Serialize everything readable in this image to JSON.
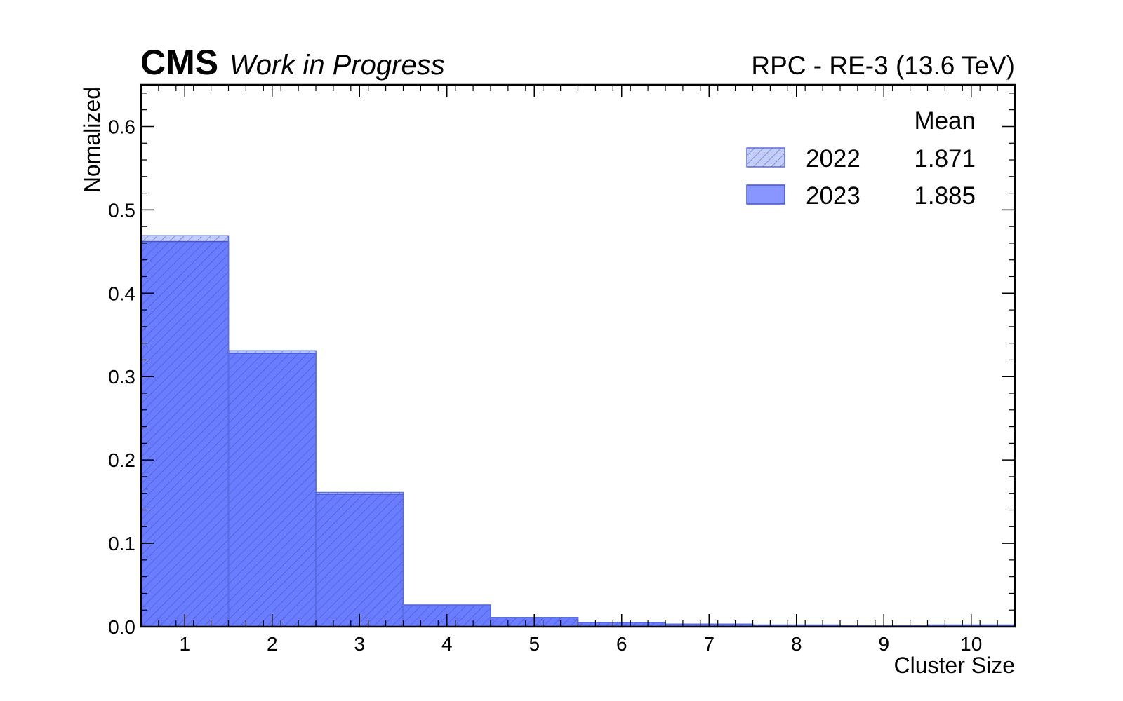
{
  "header": {
    "experiment": "CMS",
    "status": "Work in Progress",
    "right_label": "RPC - RE-3 (13.6 TeV)"
  },
  "chart_data": {
    "type": "bar",
    "histogram": true,
    "xlabel": "Cluster Size",
    "ylabel": "Nomalized",
    "xlim": [
      0.5,
      10.5
    ],
    "ylim": [
      0,
      0.65
    ],
    "x_ticks": [
      1,
      2,
      3,
      4,
      5,
      6,
      7,
      8,
      9,
      10
    ],
    "y_ticks": [
      0.0,
      0.1,
      0.2,
      0.3,
      0.4,
      0.5,
      0.6
    ],
    "y_tick_labels": [
      "0.0",
      "0.1",
      "0.2",
      "0.3",
      "0.4",
      "0.5",
      "0.6"
    ],
    "categories": [
      1,
      2,
      3,
      4,
      5,
      6,
      7,
      8,
      9,
      10
    ],
    "legend_header": "Mean",
    "legend_position": "top-right",
    "grid": false,
    "series": [
      {
        "name": "2022",
        "mean": "1.871",
        "style": "hatched",
        "fill": "#c3cdf7",
        "edge": "#5b6fe0",
        "values": [
          0.469,
          0.331,
          0.161,
          0.026,
          0.011,
          0.005,
          0.003,
          0.002,
          0.001,
          0.002
        ]
      },
      {
        "name": "2023",
        "mean": "1.885",
        "style": "solid",
        "fill": "#6a7cff",
        "edge": "#4455cc",
        "values": [
          0.462,
          0.328,
          0.159,
          0.026,
          0.011,
          0.005,
          0.003,
          0.002,
          0.001,
          0.002
        ]
      }
    ]
  }
}
